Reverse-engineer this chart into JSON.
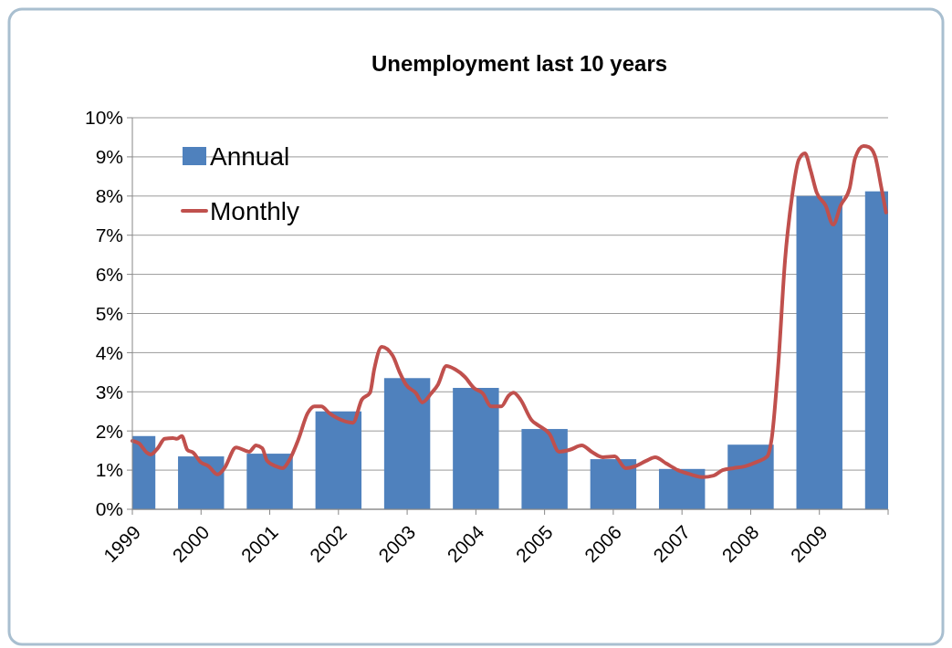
{
  "chart_data": {
    "type": "bar",
    "title": "Unemployment last 10 years",
    "xlim": [
      1999,
      2010
    ],
    "xticks": [
      1999,
      2000,
      2001,
      2002,
      2003,
      2004,
      2005,
      2006,
      2007,
      2008,
      2009,
      {
        "value": 2010,
        "label": null
      }
    ],
    "ylim": [
      0,
      10
    ],
    "yticks": [
      {
        "value": 0,
        "label": "0%"
      },
      {
        "value": 1,
        "label": "1%"
      },
      {
        "value": 2,
        "label": "2%"
      },
      {
        "value": 3,
        "label": "3%"
      },
      {
        "value": 4,
        "label": "4%"
      },
      {
        "value": 5,
        "label": "5%"
      },
      {
        "value": 6,
        "label": "6%"
      },
      {
        "value": 7,
        "label": "7%"
      },
      {
        "value": 8,
        "label": "8%"
      },
      {
        "value": 9,
        "label": "9%"
      },
      {
        "value": 10,
        "label": "10%"
      }
    ],
    "grid": "y",
    "legend": "top left",
    "series": [
      {
        "name": "Annual",
        "color": "#4f81bd",
        "x": [
          1999,
          2000,
          2001,
          2002,
          2003,
          2004,
          2005,
          2006,
          2007,
          2008,
          2009,
          2010
        ],
        "values": [
          1.87,
          1.35,
          1.42,
          2.5,
          3.35,
          3.1,
          2.05,
          1.28,
          1.03,
          1.65,
          8.0,
          8.12
        ]
      },
      {
        "name": "Monthly",
        "type": "line",
        "color": "#c0504d",
        "x": [
          1999.0,
          1999.1,
          1999.21,
          1999.27,
          1999.37,
          1999.47,
          1999.59,
          1999.65,
          1999.72,
          1999.8,
          1999.89,
          1999.99,
          2000.11,
          2000.24,
          2000.34,
          2000.51,
          2000.7,
          2000.8,
          2000.89,
          2000.96,
          2001.09,
          2001.19,
          2001.28,
          2001.42,
          2001.55,
          2001.65,
          2001.75,
          2001.87,
          2001.98,
          2002.21,
          2002.34,
          2002.46,
          2002.52,
          2002.63,
          2002.79,
          2002.89,
          2002.98,
          2003.13,
          2003.22,
          2003.35,
          2003.45,
          2003.57,
          2003.7,
          2003.84,
          2003.97,
          2004.1,
          2004.22,
          2004.37,
          2004.48,
          2004.55,
          2004.65,
          2004.81,
          2004.91,
          2005.07,
          2005.21,
          2005.37,
          2005.54,
          2005.7,
          2005.85,
          2006.02,
          2006.18,
          2006.32,
          2006.48,
          2006.61,
          2006.77,
          2006.94,
          2007.13,
          2007.3,
          2007.46,
          2007.59,
          2007.75,
          2007.92,
          2008.09,
          2008.24,
          2008.31,
          2008.4,
          2008.5,
          2008.61,
          2008.7,
          2008.79,
          2008.87,
          2008.96,
          2009.09,
          2009.2,
          2009.31,
          2009.44,
          2009.52,
          2009.64,
          2009.72,
          2009.81,
          2009.9,
          2009.97
        ],
        "values": [
          1.75,
          1.68,
          1.45,
          1.4,
          1.56,
          1.8,
          1.82,
          1.8,
          1.87,
          1.52,
          1.44,
          1.21,
          1.1,
          0.89,
          1.05,
          1.58,
          1.47,
          1.63,
          1.56,
          1.24,
          1.1,
          1.05,
          1.24,
          1.8,
          2.45,
          2.63,
          2.63,
          2.45,
          2.33,
          2.21,
          2.8,
          2.98,
          3.57,
          4.15,
          3.92,
          3.5,
          3.19,
          2.96,
          2.73,
          2.96,
          3.19,
          3.66,
          3.57,
          3.38,
          3.1,
          2.96,
          2.63,
          2.63,
          2.91,
          2.98,
          2.8,
          2.28,
          2.14,
          1.93,
          1.47,
          1.52,
          1.63,
          1.45,
          1.33,
          1.35,
          1.05,
          1.1,
          1.24,
          1.33,
          1.17,
          1.0,
          0.89,
          0.82,
          0.86,
          1.0,
          1.05,
          1.1,
          1.21,
          1.35,
          1.86,
          3.66,
          6.36,
          8.09,
          8.93,
          9.09,
          8.67,
          8.09,
          7.76,
          7.27,
          7.76,
          8.2,
          8.97,
          9.28,
          9.25,
          9.02,
          8.23,
          7.58
        ]
      }
    ]
  }
}
